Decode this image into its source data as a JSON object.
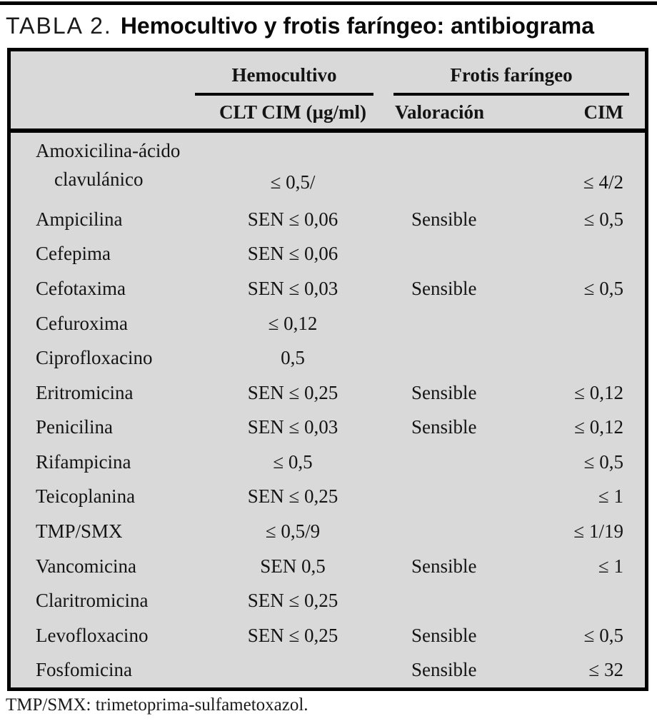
{
  "title": {
    "label": "TABLA 2.",
    "text": "Hemocultivo y frotis faríngeo: antibiograma"
  },
  "colors": {
    "table_background": "#d9d9d9",
    "rule_color": "#000000",
    "page_background": "#ffffff"
  },
  "table": {
    "group_headers": [
      "Hemocultivo",
      "Frotis faríngeo"
    ],
    "sub_headers": [
      "CLT CIM (µg/ml)",
      "Valoración",
      "CIM"
    ],
    "rows": [
      {
        "name": "Amoxicilina-ácido",
        "name2": "clavulánico",
        "clt": "≤ 0,5/",
        "valoracion": "",
        "cim": "≤ 4/2"
      },
      {
        "name": "Ampicilina",
        "clt": "SEN ≤ 0,06",
        "valoracion": "Sensible",
        "cim": "≤ 0,5"
      },
      {
        "name": "Cefepima",
        "clt": "SEN ≤ 0,06",
        "valoracion": "",
        "cim": ""
      },
      {
        "name": "Cefotaxima",
        "clt": "SEN ≤ 0,03",
        "valoracion": "Sensible",
        "cim": "≤ 0,5"
      },
      {
        "name": "Cefuroxima",
        "clt": "≤ 0,12",
        "valoracion": "",
        "cim": ""
      },
      {
        "name": "Ciprofloxacino",
        "clt": "0,5",
        "valoracion": "",
        "cim": ""
      },
      {
        "name": "Eritromicina",
        "clt": "SEN ≤ 0,25",
        "valoracion": "Sensible",
        "cim": "≤ 0,12"
      },
      {
        "name": "Penicilina",
        "clt": "SEN ≤ 0,03",
        "valoracion": "Sensible",
        "cim": "≤ 0,12"
      },
      {
        "name": "Rifampicina",
        "clt": "≤ 0,5",
        "valoracion": "",
        "cim": "≤ 0,5"
      },
      {
        "name": "Teicoplanina",
        "clt": "SEN ≤ 0,25",
        "valoracion": "",
        "cim": "≤ 1"
      },
      {
        "name": "TMP/SMX",
        "clt": "≤ 0,5/9",
        "valoracion": "",
        "cim": "≤ 1/19"
      },
      {
        "name": "Vancomicina",
        "clt": "SEN 0,5",
        "valoracion": "Sensible",
        "cim": "≤ 1"
      },
      {
        "name": "Claritromicina",
        "clt": "SEN ≤ 0,25",
        "valoracion": "",
        "cim": ""
      },
      {
        "name": "Levofloxacino",
        "clt": "SEN ≤ 0,25",
        "valoracion": "Sensible",
        "cim": "≤ 0,5"
      },
      {
        "name": "Fosfomicina",
        "clt": "",
        "valoracion": "Sensible",
        "cim": "≤ 32"
      }
    ],
    "footnote": "TMP/SMX: trimetoprima-sulfametoxazol."
  }
}
